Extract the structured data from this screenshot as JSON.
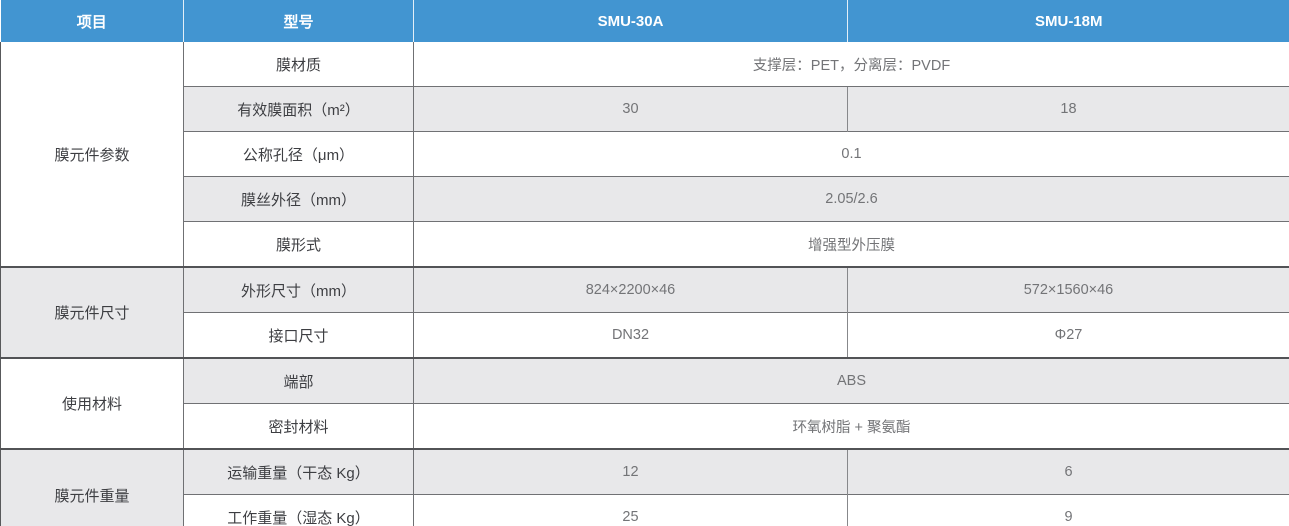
{
  "colors": {
    "header_bg": "#4295d1",
    "header_text": "#ffffff",
    "row_alt_bg": "#e8e8ea",
    "grid_border": "#58595b"
  },
  "table": {
    "headers": [
      "项目",
      "型号",
      "SMU-30A",
      "SMU-18M"
    ],
    "sections": [
      {
        "category": "膜元件参数",
        "rows": [
          {
            "label": "膜材质",
            "merged": "支撑层：PET，分离层：PVDF"
          },
          {
            "label": "有效膜面积（m²）",
            "v1": "30",
            "v2": "18"
          },
          {
            "label": "公称孔径（μm）",
            "merged": "0.1"
          },
          {
            "label": "膜丝外径（mm）",
            "merged": "2.05/2.6"
          },
          {
            "label": "膜形式",
            "merged": "增强型外压膜"
          }
        ]
      },
      {
        "category": "膜元件尺寸",
        "rows": [
          {
            "label": "外形尺寸（mm）",
            "v1": "824×2200×46",
            "v2": "572×1560×46"
          },
          {
            "label": "接口尺寸",
            "v1": "DN32",
            "v2": "Φ27"
          }
        ]
      },
      {
        "category": "使用材料",
        "rows": [
          {
            "label": "端部",
            "merged": "ABS"
          },
          {
            "label": "密封材料",
            "merged": "环氧树脂 + 聚氨酯"
          }
        ]
      },
      {
        "category": "膜元件重量",
        "rows": [
          {
            "label": "运输重量（干态 Kg）",
            "v1": "12",
            "v2": "6"
          },
          {
            "label": "工作重量（湿态 Kg）",
            "v1": "25",
            "v2": "9"
          }
        ]
      }
    ]
  }
}
